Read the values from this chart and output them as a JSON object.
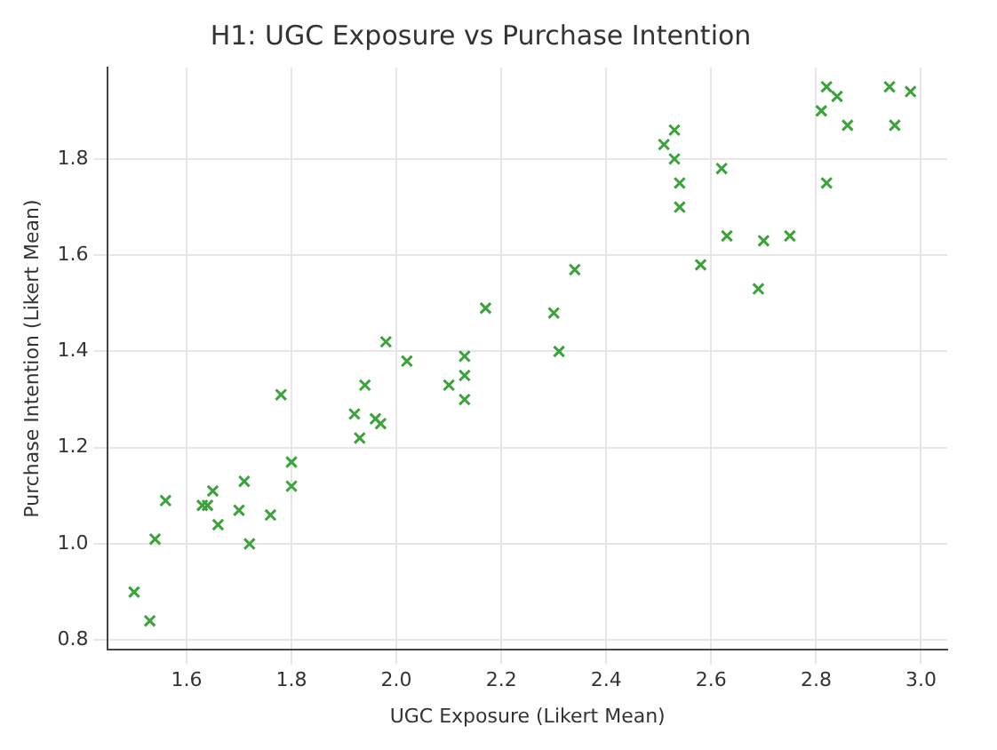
{
  "chart_data": {
    "type": "scatter",
    "title": "H1: UGC Exposure vs Purchase Intention",
    "xlabel": "UGC Exposure (Likert Mean)",
    "ylabel": "Purchase Intention (Likert Mean)",
    "xlim": [
      1.45,
      3.05
    ],
    "xticks": [
      1.6,
      1.8,
      {
        "value": 2,
        "label": "2.0"
      },
      2.2,
      2.4,
      2.6,
      2.8,
      {
        "value": 3,
        "label": "3.0"
      }
    ],
    "ylim": [
      0.78,
      1.99
    ],
    "yticks": [
      0.8,
      {
        "value": 1,
        "label": "1.0"
      },
      1.2,
      1.4,
      1.6,
      1.8
    ],
    "grid": true,
    "marker": "cross",
    "series": [
      {
        "color": "#3aa33a",
        "x": [
          1.5,
          1.53,
          1.54,
          1.56,
          1.63,
          1.64,
          1.65,
          1.66,
          1.7,
          1.71,
          1.72,
          1.76,
          1.8,
          1.8,
          1.78,
          1.92,
          1.93,
          1.94,
          1.96,
          1.97,
          1.98,
          2.02,
          2.1,
          2.13,
          2.13,
          2.13,
          2.17,
          2.3,
          2.31,
          2.34,
          2.53,
          2.51,
          2.53,
          2.54,
          2.54,
          2.62,
          2.63,
          2.7,
          2.75,
          2.58,
          2.69,
          2.82,
          2.84,
          2.81,
          2.86,
          2.94,
          2.98,
          2.95,
          2.82
        ],
        "values": [
          0.9,
          0.84,
          1.01,
          1.09,
          1.08,
          1.08,
          1.11,
          1.04,
          1.07,
          1.13,
          1.0,
          1.06,
          1.12,
          1.17,
          1.31,
          1.27,
          1.22,
          1.33,
          1.26,
          1.25,
          1.42,
          1.38,
          1.33,
          1.39,
          1.35,
          1.3,
          1.49,
          1.48,
          1.4,
          1.57,
          1.86,
          1.83,
          1.8,
          1.75,
          1.7,
          1.78,
          1.64,
          1.63,
          1.64,
          1.58,
          1.53,
          1.95,
          1.93,
          1.9,
          1.87,
          1.95,
          1.94,
          1.87,
          1.75
        ]
      }
    ]
  }
}
